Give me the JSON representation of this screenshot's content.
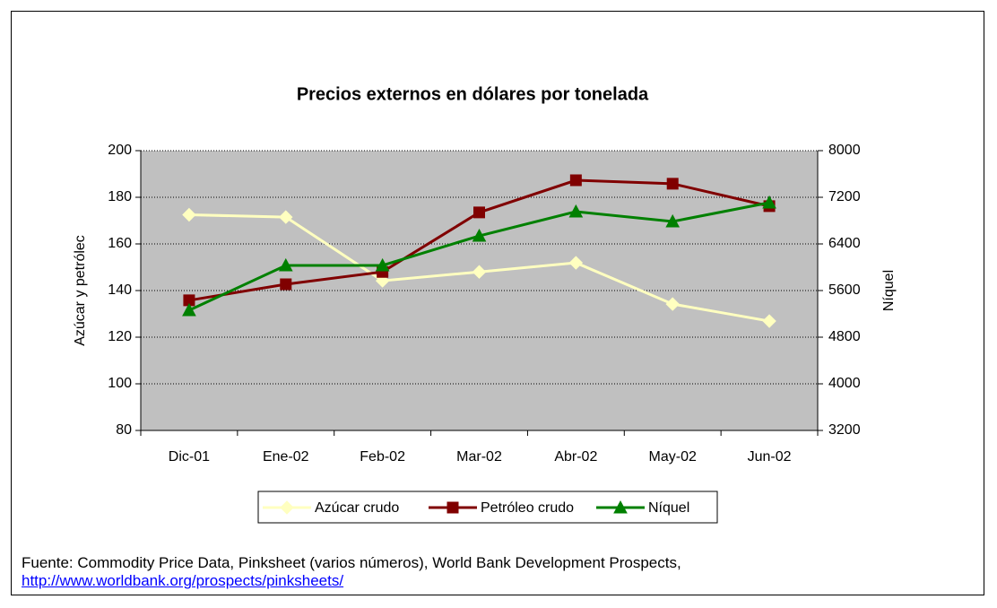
{
  "chart_data": {
    "type": "line",
    "title": "Precios externos en dólares por tonelada",
    "ylabel": "Azúcar y petrólec",
    "y2label": "Níquel",
    "categories": [
      "Dic-01",
      "Ene-02",
      "Feb-02",
      "Mar-02",
      "Abr-02",
      "May-02",
      "Jun-02"
    ],
    "series": [
      {
        "name": "Azúcar crudo",
        "color": "#ffffc0",
        "marker": "diamond",
        "values": [
          172.5,
          171.5,
          144.2,
          148,
          151.9,
          134.2,
          126.9
        ]
      },
      {
        "name": "Petróleo crudo",
        "color": "#800000",
        "marker": "square",
        "values": [
          135.8,
          142.7,
          148,
          173.5,
          187.3,
          185.8,
          176.2
        ]
      },
      {
        "name": "Níquel",
        "color": "#008000",
        "marker": "triangle",
        "axis": "y2",
        "values": [
          5262,
          6031,
          6031,
          6538,
          6954,
          6785,
          7108
        ]
      }
    ],
    "ylim": [
      80,
      200
    ],
    "yticks": [
      80,
      100,
      120,
      140,
      160,
      180,
      200
    ],
    "y2lim": [
      3200,
      8000
    ],
    "y2ticks": [
      3200,
      4000,
      4800,
      5600,
      6400,
      7200,
      8000
    ],
    "grid": true,
    "legend": "bottom",
    "plot_background": "#c0c0c0"
  },
  "footer": {
    "source": "Fuente: Commodity Price Data, Pinksheet (varios números), World Bank Development Prospects,",
    "link": "http://www.worldbank.org/prospects/pinksheets/"
  }
}
